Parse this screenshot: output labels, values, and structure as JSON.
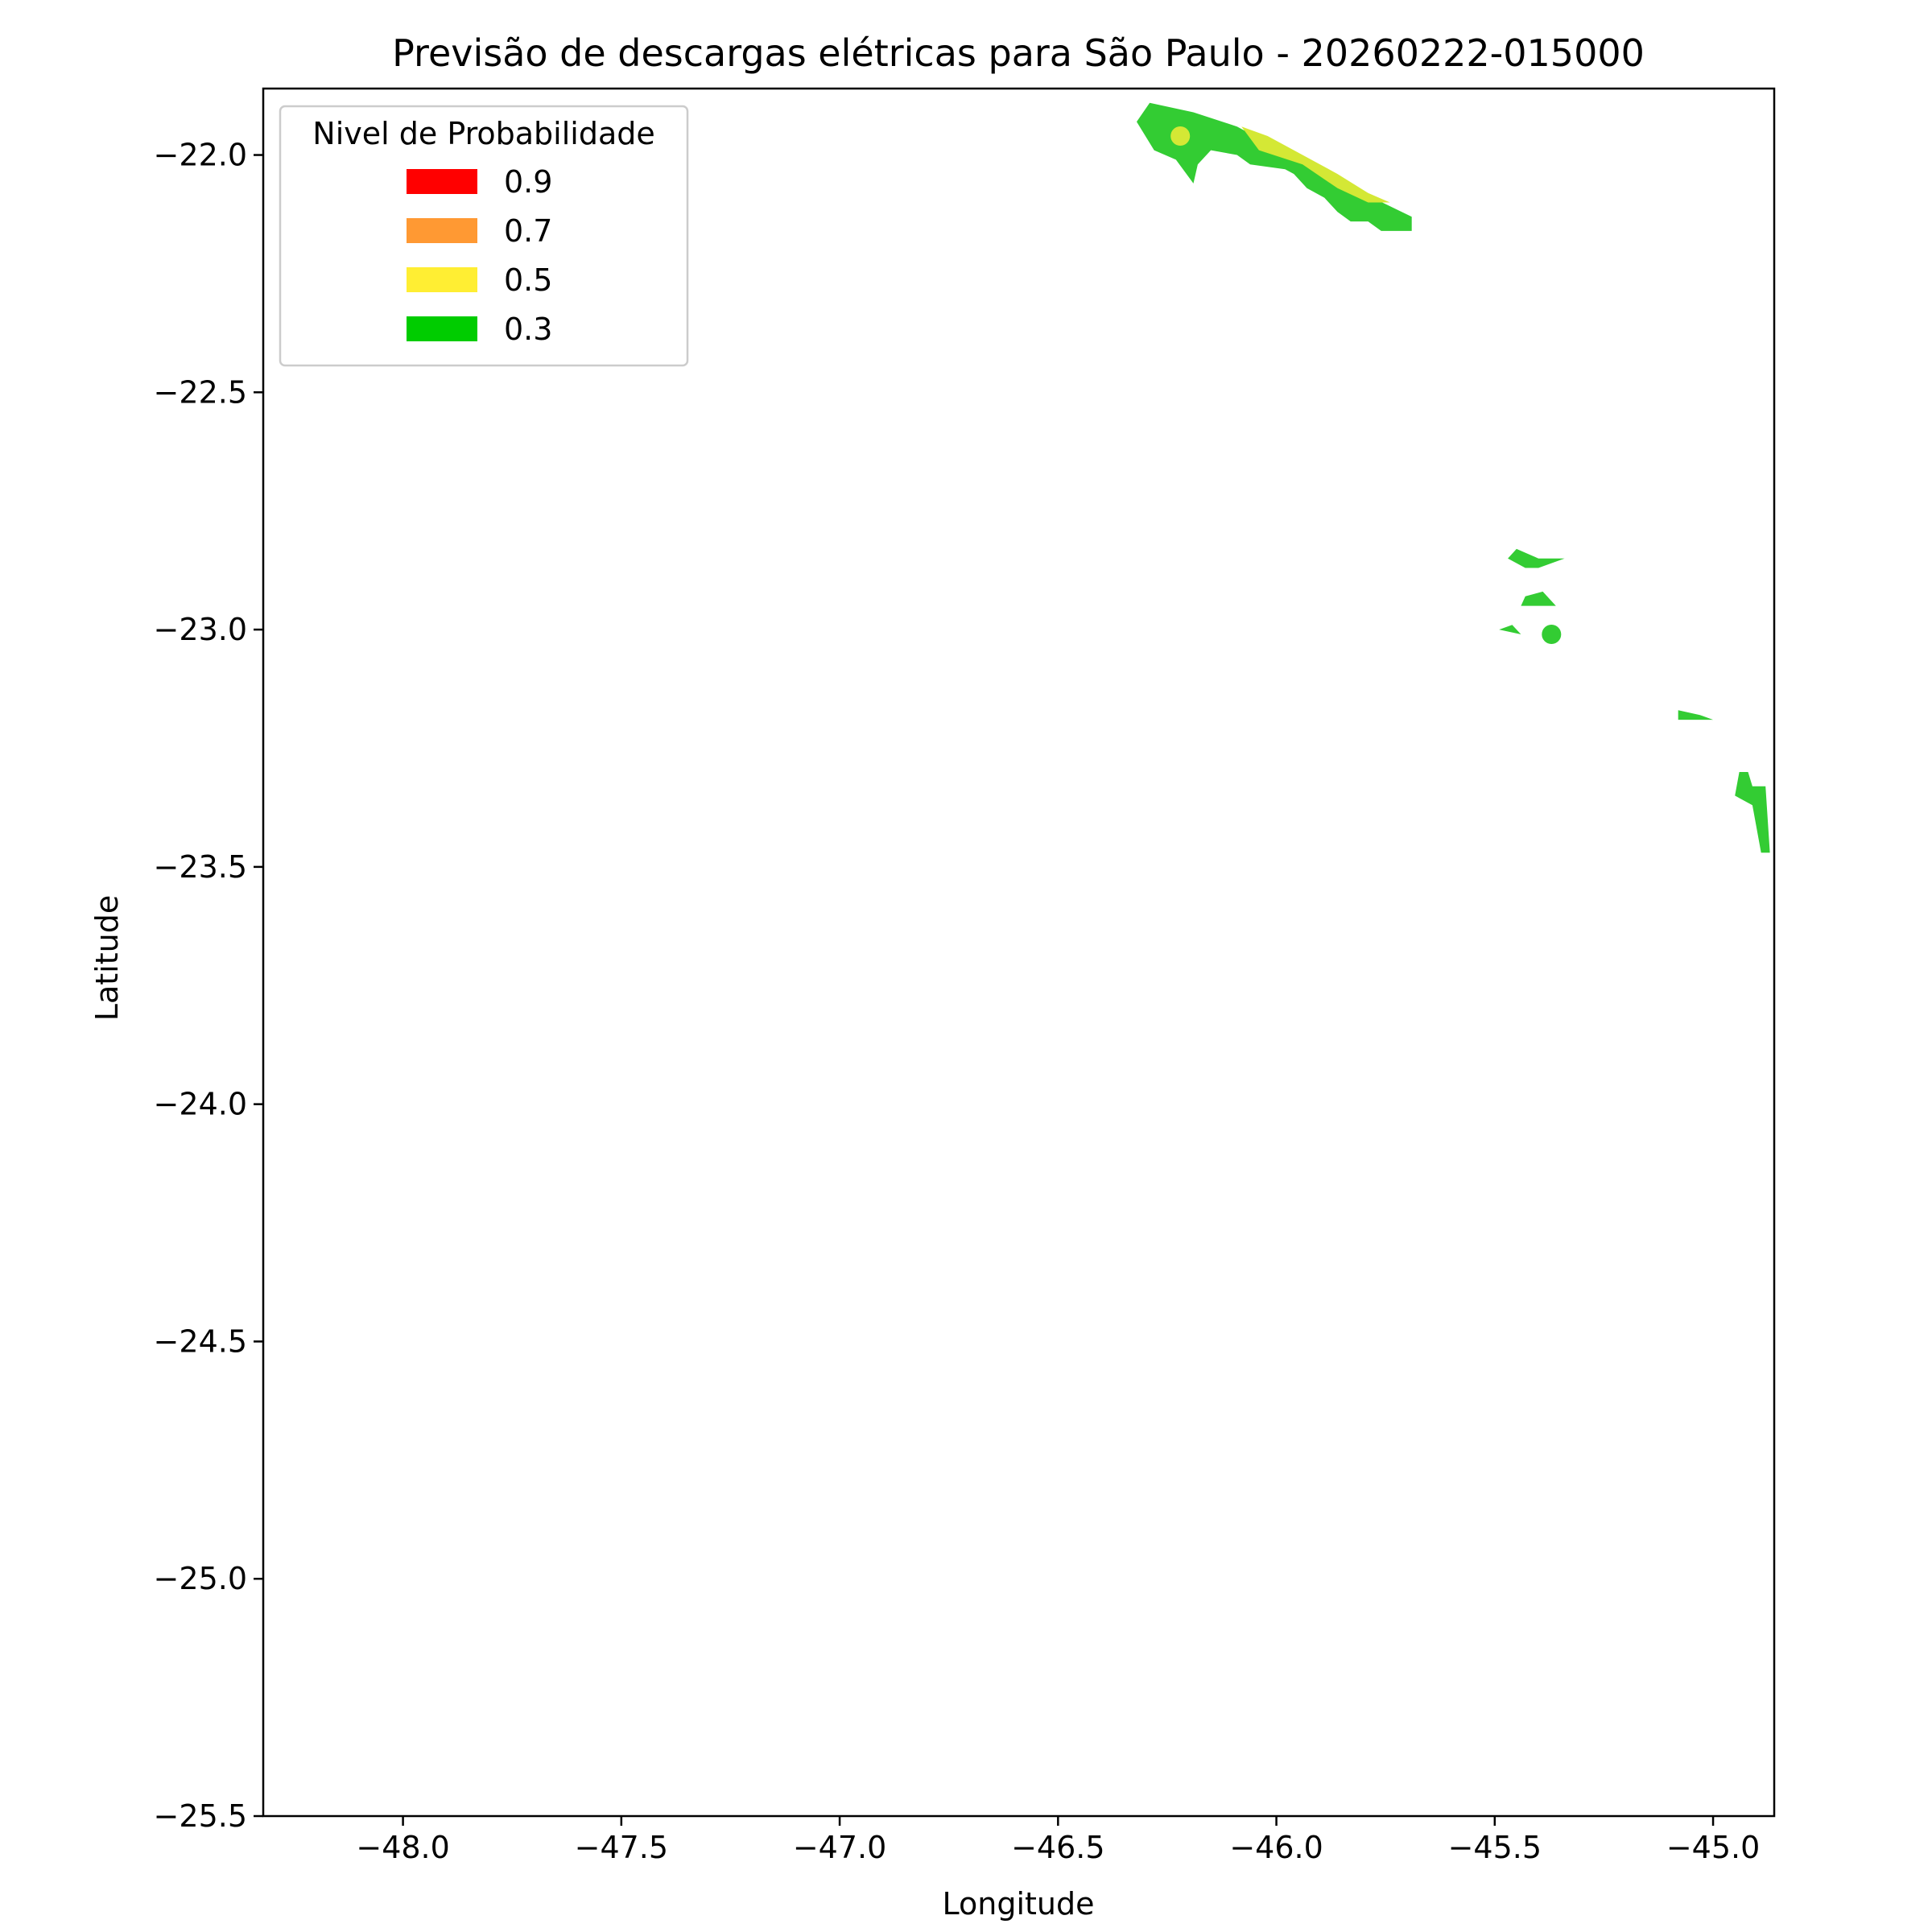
{
  "chart_data": {
    "type": "contour-map",
    "title": "Previsão de descargas elétricas para São Paulo - 20260222-015000",
    "xlabel": "Longitude",
    "ylabel": "Latitude",
    "xlim": [
      -48.32,
      -44.86
    ],
    "ylim": [
      -25.5,
      -21.86
    ],
    "x_ticks": [
      -48.0,
      -47.5,
      -47.0,
      -46.5,
      -46.0,
      -45.5,
      -45.0
    ],
    "x_tick_labels": [
      "−48.0",
      "−47.5",
      "−47.0",
      "−46.5",
      "−46.0",
      "−45.5",
      "−45.0"
    ],
    "y_ticks": [
      -22.0,
      -22.5,
      -23.0,
      -23.5,
      -24.0,
      -24.5,
      -25.0,
      -25.5
    ],
    "y_tick_labels": [
      "−22.0",
      "−22.5",
      "−23.0",
      "−23.5",
      "−24.0",
      "−24.5",
      "−25.0",
      "−25.5"
    ],
    "grid": false,
    "legend": {
      "title": "Nivel de Probabilidade",
      "position": "upper-left",
      "entries": [
        {
          "label": "0.9",
          "color": "#ff0000"
        },
        {
          "label": "0.7",
          "color": "#ff9933"
        },
        {
          "label": "0.5",
          "color": "#ffee33"
        },
        {
          "label": "0.3",
          "color": "#00cc00"
        }
      ]
    },
    "regions": [
      {
        "level": 0.3,
        "color": "#33cc33",
        "points": [
          [
            -46.29,
            -21.89
          ],
          [
            -46.19,
            -21.91
          ],
          [
            -46.09,
            -21.94
          ],
          [
            -45.99,
            -21.99
          ],
          [
            -45.88,
            -22.04
          ],
          [
            -45.78,
            -22.09
          ],
          [
            -45.69,
            -22.13
          ],
          [
            -45.69,
            -22.16
          ],
          [
            -45.76,
            -22.16
          ],
          [
            -45.79,
            -22.14
          ],
          [
            -45.83,
            -22.14
          ],
          [
            -45.86,
            -22.12
          ],
          [
            -45.89,
            -22.09
          ],
          [
            -45.93,
            -22.07
          ],
          [
            -45.96,
            -22.04
          ],
          [
            -45.98,
            -22.03
          ],
          [
            -46.06,
            -22.02
          ],
          [
            -46.09,
            -22.0
          ],
          [
            -46.15,
            -21.99
          ],
          [
            -46.18,
            -22.02
          ],
          [
            -46.19,
            -22.06
          ],
          [
            -46.23,
            -22.01
          ],
          [
            -46.28,
            -21.99
          ],
          [
            -46.32,
            -21.93
          ]
        ]
      },
      {
        "level": 0.5,
        "color": "#d4e835",
        "points": [
          [
            -46.08,
            -21.94
          ],
          [
            -46.02,
            -21.96
          ],
          [
            -45.94,
            -22.0
          ],
          [
            -45.86,
            -22.04
          ],
          [
            -45.79,
            -22.08
          ],
          [
            -45.74,
            -22.1
          ],
          [
            -45.79,
            -22.1
          ],
          [
            -45.86,
            -22.07
          ],
          [
            -45.94,
            -22.02
          ],
          [
            -46.04,
            -21.99
          ]
        ]
      },
      {
        "level": 0.3,
        "color": "#33cc33",
        "points": [
          [
            -45.45,
            -22.83
          ],
          [
            -45.4,
            -22.85
          ],
          [
            -45.34,
            -22.85
          ],
          [
            -45.4,
            -22.87
          ],
          [
            -45.43,
            -22.87
          ],
          [
            -45.47,
            -22.85
          ]
        ]
      },
      {
        "level": 0.3,
        "color": "#33cc33",
        "points": [
          [
            -45.43,
            -22.93
          ],
          [
            -45.39,
            -22.92
          ],
          [
            -45.36,
            -22.95
          ],
          [
            -45.44,
            -22.95
          ]
        ]
      },
      {
        "level": 0.3,
        "color": "#33cc33",
        "points": [
          [
            -45.49,
            -23.0
          ],
          [
            -45.46,
            -22.99
          ],
          [
            -45.44,
            -23.01
          ]
        ]
      },
      {
        "level": 0.3,
        "color": "#33cc33",
        "points": [
          [
            -45.08,
            -23.17
          ],
          [
            -45.03,
            -23.18
          ],
          [
            -45.0,
            -23.19
          ],
          [
            -45.08,
            -23.19
          ]
        ]
      },
      {
        "level": 0.3,
        "color": "#33cc33",
        "points": [
          [
            -44.94,
            -23.3
          ],
          [
            -44.92,
            -23.3
          ],
          [
            -44.91,
            -23.33
          ],
          [
            -44.88,
            -23.33
          ],
          [
            -44.87,
            -23.47
          ],
          [
            -44.89,
            -23.47
          ],
          [
            -44.91,
            -23.37
          ],
          [
            -44.95,
            -23.35
          ]
        ]
      }
    ],
    "markers": [
      {
        "lon": -46.22,
        "lat": -21.96,
        "color": "#d4e835",
        "level": 0.5
      },
      {
        "lon": -45.37,
        "lat": -23.01,
        "color": "#33cc33",
        "level": 0.3
      }
    ]
  }
}
